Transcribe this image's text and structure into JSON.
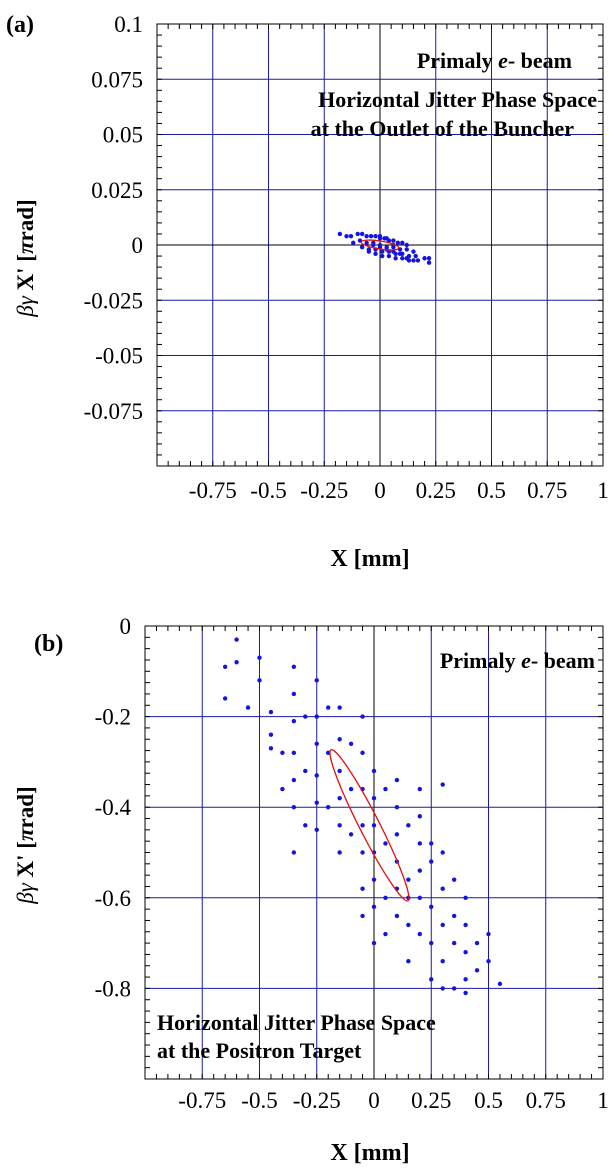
{
  "chart_data": [
    {
      "type": "scatter",
      "panel_label": "(a)",
      "title": "",
      "xlabel": "X [mm]",
      "ylabel": "βγ X' [πrad]",
      "xlim": [
        -1,
        1
      ],
      "ylim": [
        -0.1,
        0.1
      ],
      "x_ticks": [
        -0.75,
        -0.5,
        -0.25,
        0,
        0.25,
        0.5,
        0.75,
        1
      ],
      "x_tick_labels": [
        "-0.75",
        "-0.5",
        "-0.25",
        "0",
        "0.25",
        "0.5",
        "0.75",
        "1"
      ],
      "y_ticks": [
        0.1,
        0.075,
        0.05,
        0.025,
        0,
        -0.025,
        -0.05,
        -0.075
      ],
      "y_tick_labels": [
        "0.1",
        "0.075",
        "0.05",
        "0.025",
        "0",
        "-0.025",
        "-0.05",
        "-0.075"
      ],
      "grid": true,
      "annotations": [
        "Primaly e- beam",
        "Horizontal Jitter Phase Space",
        "at the Outlet of the Buncher"
      ],
      "ellipse": {
        "cx": 0,
        "cy": 0,
        "rx": 0.085,
        "ry": 0.0018,
        "angle_deg": -9
      },
      "series": [
        {
          "points": [
            [
              -0.18,
              0.005
            ],
            [
              -0.15,
              0.004
            ],
            [
              -0.13,
              0.004
            ],
            [
              -0.1,
              0.005
            ],
            [
              -0.08,
              0.005
            ],
            [
              -0.06,
              0.004
            ],
            [
              -0.04,
              0.004
            ],
            [
              -0.02,
              0.004
            ],
            [
              0,
              0.003
            ],
            [
              0.02,
              0.003
            ],
            [
              0.04,
              0.002
            ],
            [
              0.06,
              0.002
            ],
            [
              0.08,
              0.001
            ],
            [
              0.1,
              0.001
            ],
            [
              0.12,
              0.0
            ],
            [
              -0.12,
              0.001
            ],
            [
              -0.09,
              0.002
            ],
            [
              -0.06,
              0.001
            ],
            [
              -0.03,
              0.001
            ],
            [
              0,
              0.0
            ],
            [
              0.03,
              -0.001
            ],
            [
              0.06,
              -0.001
            ],
            [
              0.09,
              -0.002
            ],
            [
              0.12,
              -0.002
            ],
            [
              0.15,
              -0.003
            ],
            [
              -0.08,
              -0.001
            ],
            [
              -0.05,
              -0.002
            ],
            [
              -0.02,
              -0.002
            ],
            [
              0.01,
              -0.003
            ],
            [
              0.04,
              -0.003
            ],
            [
              0.07,
              -0.004
            ],
            [
              0.1,
              -0.004
            ],
            [
              0.13,
              -0.005
            ],
            [
              0.16,
              -0.005
            ],
            [
              0.2,
              -0.006
            ],
            [
              -0.05,
              -0.003
            ],
            [
              -0.02,
              -0.004
            ],
            [
              0.01,
              -0.005
            ],
            [
              0.04,
              -0.005
            ],
            [
              0.07,
              -0.006
            ],
            [
              0.1,
              -0.006
            ],
            [
              0.13,
              -0.007
            ],
            [
              0.17,
              -0.007
            ],
            [
              0.22,
              -0.006
            ],
            [
              0.22,
              -0.008
            ],
            [
              -0.03,
              0.0
            ],
            [
              0,
              -0.001
            ],
            [
              0.03,
              -0.002
            ],
            [
              0.06,
              -0.003
            ],
            [
              0.09,
              -0.004
            ],
            [
              0.12,
              -0.006
            ],
            [
              0.15,
              -0.007
            ],
            [
              0.0,
              0.004
            ],
            [
              0.03,
              0.003
            ],
            [
              0.06,
              0.0
            ]
          ]
        }
      ]
    },
    {
      "type": "scatter",
      "panel_label": "(b)",
      "title": "",
      "xlabel": "X [mm]",
      "ylabel": "βγ X' [πrad]",
      "xlim": [
        -1,
        1
      ],
      "ylim": [
        -1,
        0
      ],
      "x_ticks": [
        -0.75,
        -0.5,
        -0.25,
        0,
        0.25,
        0.5,
        0.75,
        1
      ],
      "x_tick_labels": [
        "-0.75",
        "-0.5",
        "-0.25",
        "0",
        "0.25",
        "0.5",
        "0.75",
        "1"
      ],
      "y_ticks": [
        0,
        -0.2,
        -0.4,
        -0.6,
        -0.8
      ],
      "y_tick_labels": [
        "0",
        "-0.2",
        "-0.4",
        "-0.6",
        "-0.8"
      ],
      "grid": true,
      "annotations": [
        "Primaly e- beam",
        "Horizontal Jitter Phase Space",
        "at the Positron Target"
      ],
      "ellipse": {
        "cx": -0.02,
        "cy": -0.44,
        "rx": 0.37,
        "ry": 0.022,
        "angle_deg": -63
      },
      "series": [
        {
          "points": [
            [
              -0.6,
              -0.03
            ],
            [
              -0.6,
              -0.08
            ],
            [
              -0.65,
              -0.09
            ],
            [
              -0.65,
              -0.16
            ],
            [
              -0.5,
              -0.07
            ],
            [
              -0.5,
              -0.12
            ],
            [
              -0.55,
              -0.18
            ],
            [
              -0.45,
              -0.19
            ],
            [
              -0.45,
              -0.24
            ],
            [
              -0.45,
              -0.27
            ],
            [
              -0.35,
              -0.09
            ],
            [
              -0.35,
              -0.15
            ],
            [
              -0.35,
              -0.21
            ],
            [
              -0.35,
              -0.28
            ],
            [
              -0.35,
              -0.34
            ],
            [
              -0.35,
              -0.4
            ],
            [
              -0.35,
              -0.5
            ],
            [
              -0.3,
              -0.2
            ],
            [
              -0.3,
              -0.32
            ],
            [
              -0.25,
              -0.12
            ],
            [
              -0.25,
              -0.2
            ],
            [
              -0.25,
              -0.26
            ],
            [
              -0.25,
              -0.33
            ],
            [
              -0.25,
              -0.39
            ],
            [
              -0.25,
              -0.45
            ],
            [
              -0.2,
              -0.18
            ],
            [
              -0.2,
              -0.28
            ],
            [
              -0.15,
              -0.18
            ],
            [
              -0.15,
              -0.25
            ],
            [
              -0.15,
              -0.32
            ],
            [
              -0.15,
              -0.38
            ],
            [
              -0.15,
              -0.44
            ],
            [
              -0.15,
              -0.5
            ],
            [
              -0.1,
              -0.26
            ],
            [
              -0.1,
              -0.36
            ],
            [
              -0.05,
              -0.2
            ],
            [
              -0.05,
              -0.28
            ],
            [
              -0.05,
              -0.36
            ],
            [
              -0.05,
              -0.44
            ],
            [
              -0.05,
              -0.5
            ],
            [
              -0.05,
              -0.58
            ],
            [
              -0.05,
              -0.64
            ],
            [
              0,
              -0.32
            ],
            [
              0,
              -0.38
            ],
            [
              0,
              -0.44
            ],
            [
              0,
              -0.5
            ],
            [
              0,
              -0.56
            ],
            [
              0,
              -0.62
            ],
            [
              0,
              -0.7
            ],
            [
              0.05,
              -0.36
            ],
            [
              0.05,
              -0.48
            ],
            [
              0.05,
              -0.6
            ],
            [
              0.1,
              -0.34
            ],
            [
              0.1,
              -0.4
            ],
            [
              0.1,
              -0.46
            ],
            [
              0.1,
              -0.52
            ],
            [
              0.1,
              -0.58
            ],
            [
              0.1,
              -0.64
            ],
            [
              0.15,
              -0.44
            ],
            [
              0.15,
              -0.56
            ],
            [
              0.15,
              -0.66
            ],
            [
              0.15,
              -0.74
            ],
            [
              0.2,
              -0.36
            ],
            [
              0.2,
              -0.42
            ],
            [
              0.2,
              -0.48
            ],
            [
              0.2,
              -0.54
            ],
            [
              0.2,
              -0.6
            ],
            [
              0.2,
              -0.68
            ],
            [
              0.25,
              -0.52
            ],
            [
              0.25,
              -0.62
            ],
            [
              0.25,
              -0.7
            ],
            [
              0.25,
              -0.78
            ],
            [
              0.3,
              -0.35
            ],
            [
              0.3,
              -0.5
            ],
            [
              0.3,
              -0.58
            ],
            [
              0.3,
              -0.66
            ],
            [
              0.3,
              -0.74
            ],
            [
              0.3,
              -0.8
            ],
            [
              0.35,
              -0.56
            ],
            [
              0.35,
              -0.64
            ],
            [
              0.35,
              -0.7
            ],
            [
              0.4,
              -0.6
            ],
            [
              0.4,
              -0.66
            ],
            [
              0.4,
              -0.72
            ],
            [
              0.4,
              -0.78
            ],
            [
              0.45,
              -0.7
            ],
            [
              0.45,
              -0.76
            ],
            [
              0.5,
              -0.68
            ],
            [
              0.5,
              -0.74
            ],
            [
              0.55,
              -0.79
            ],
            [
              -0.4,
              -0.28
            ],
            [
              -0.4,
              -0.36
            ],
            [
              -0.2,
              -0.4
            ],
            [
              -0.1,
              -0.46
            ],
            [
              0.05,
              -0.68
            ],
            [
              0.15,
              -0.6
            ],
            [
              0.25,
              -0.48
            ],
            [
              0.35,
              -0.8
            ],
            [
              -0.3,
              -0.44
            ],
            [
              0.4,
              -0.81
            ]
          ]
        }
      ]
    }
  ]
}
